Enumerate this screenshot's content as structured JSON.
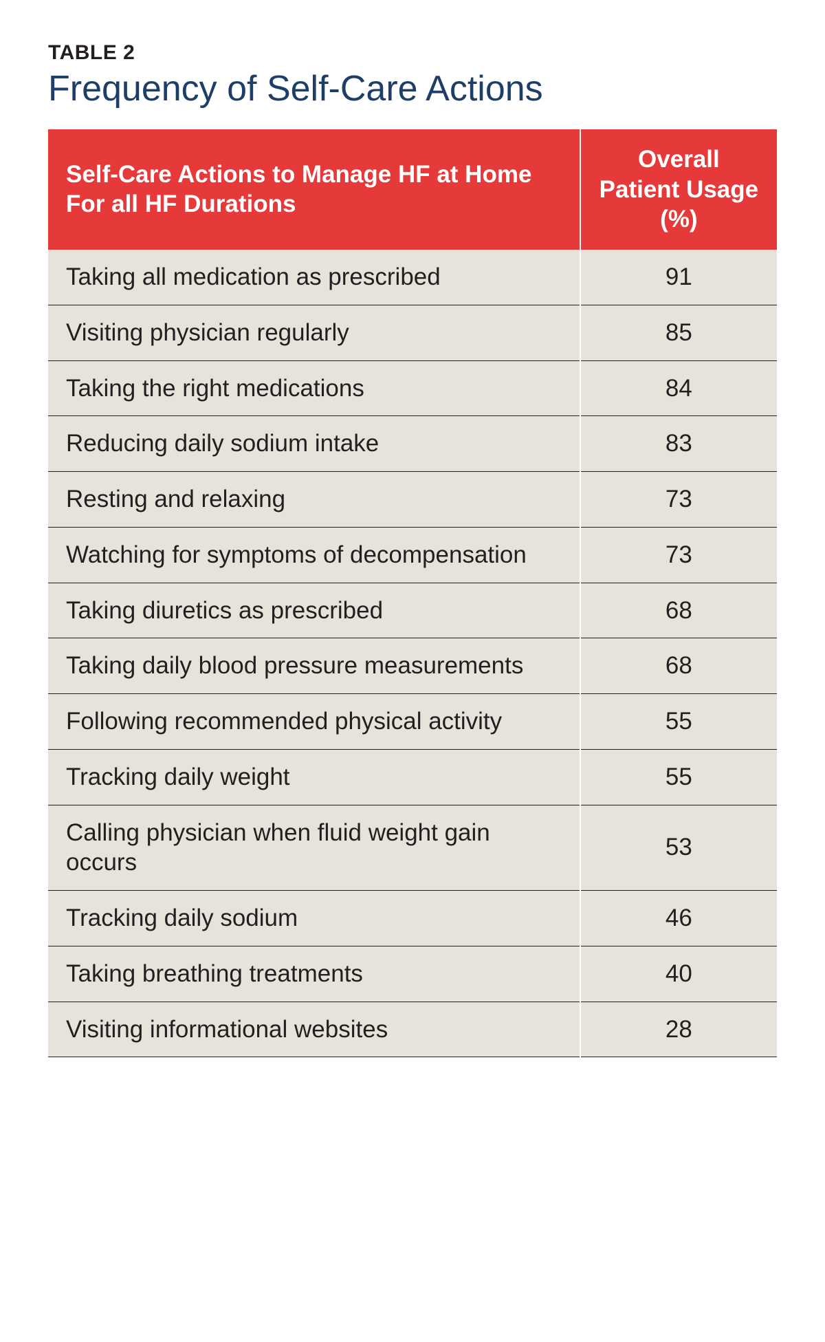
{
  "label": "TABLE 2",
  "title": "Frequency of Self-Care Actions",
  "label_fontsize": 30,
  "label_color": "#231f20",
  "title_fontsize": 52,
  "title_color": "#1d3e66",
  "table": {
    "type": "table",
    "header_bg": "#e5393a",
    "header_text_color": "#ffffff",
    "header_fontsize": 35,
    "row_bg": "#e5e3da",
    "row_text_color": "#231f20",
    "row_fontsize": 35,
    "row_border_color": "#231f20",
    "row_border_width": 1,
    "col_divider_color": "#ffffff",
    "col_divider_width": 2,
    "col_widths_pct": [
      73,
      27
    ],
    "columns": [
      "Self-Care Actions to Manage HF at Home For all HF Durations",
      "Overall Patient Usage (%)"
    ],
    "rows": [
      {
        "action": "Taking all medication as prescribed",
        "value": "91"
      },
      {
        "action": "Visiting physician regularly",
        "value": "85"
      },
      {
        "action": "Taking the right medications",
        "value": "84"
      },
      {
        "action": "Reducing daily sodium intake",
        "value": "83"
      },
      {
        "action": "Resting and relaxing",
        "value": "73"
      },
      {
        "action": "Watching for symptoms of decompensation",
        "value": "73"
      },
      {
        "action": "Taking diuretics as prescribed",
        "value": "68"
      },
      {
        "action": "Taking daily blood pressure measurements",
        "value": "68"
      },
      {
        "action": "Following recommended physical activity",
        "value": "55"
      },
      {
        "action": "Tracking daily weight",
        "value": "55"
      },
      {
        "action": "Calling physician when fluid weight gain occurs",
        "value": "53"
      },
      {
        "action": "Tracking daily sodium",
        "value": "46"
      },
      {
        "action": "Taking breathing treatments",
        "value": "40"
      },
      {
        "action": "Visiting informational websites",
        "value": "28"
      }
    ]
  }
}
